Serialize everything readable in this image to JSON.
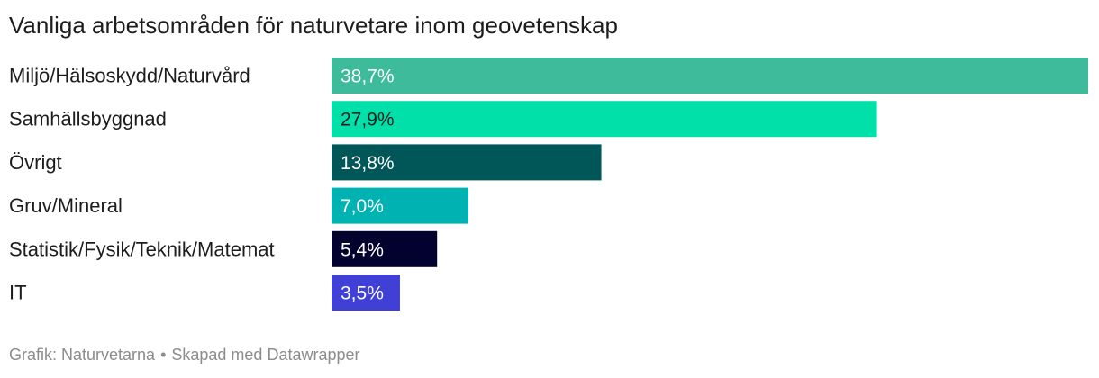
{
  "chart_data": {
    "type": "bar",
    "orientation": "horizontal",
    "title": "Vanliga arbetsområden för naturvetare inom geovetenskap",
    "categories": [
      "Miljö/Hälsoskydd/Naturvård",
      "Samhällsbyggnad",
      "Övrigt",
      "Gruv/Mineral",
      "Statistik/Fysik/Teknik/Matemat",
      "IT"
    ],
    "values": [
      38.7,
      27.9,
      13.8,
      7.0,
      5.4,
      3.5
    ],
    "value_labels": [
      "38,7%",
      "27,9%",
      "13,8%",
      "7,0%",
      "5,4%",
      "3,5%"
    ],
    "colors": [
      "#3dbb9a",
      "#00e0a8",
      "#015757",
      "#00b2b2",
      "#03012d",
      "#4040d6"
    ],
    "label_colors": [
      "#ffffff",
      "#1d1d1d",
      "#ffffff",
      "#ffffff",
      "#ffffff",
      "#ffffff"
    ],
    "xlim": [
      0,
      38.7
    ],
    "grid": false,
    "legend": "none"
  },
  "footer": {
    "source": "Grafik: Naturvetarna",
    "separator": "•",
    "credit": "Skapad med Datawrapper"
  }
}
